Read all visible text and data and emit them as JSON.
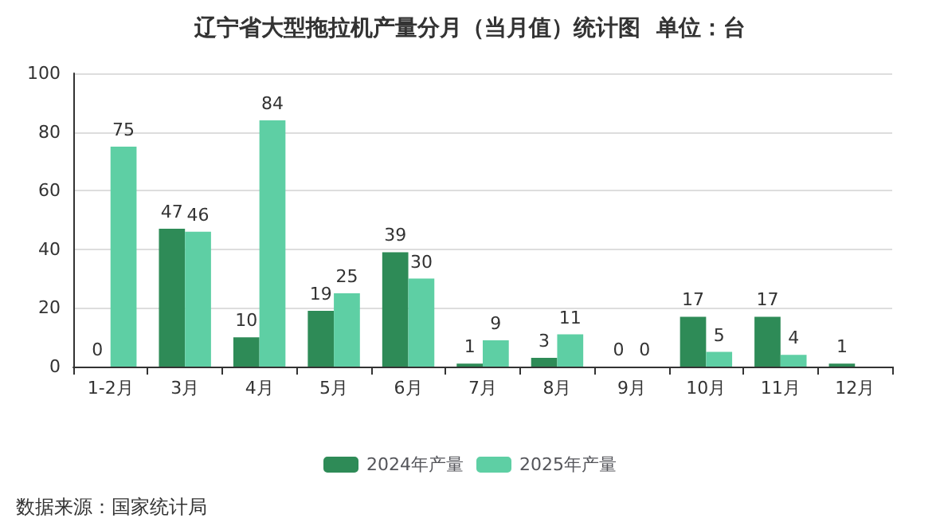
{
  "chart_data": {
    "type": "bar",
    "title": "辽宁省大型拖拉机产量分月（当月值）统计图  单位：台",
    "categories": [
      "1-2月",
      "3月",
      "4月",
      "5月",
      "6月",
      "7月",
      "8月",
      "9月",
      "10月",
      "11月",
      "12月"
    ],
    "series": [
      {
        "name": "2024年产量",
        "color": "#2e8b57",
        "values": [
          0,
          47,
          10,
          19,
          39,
          1,
          3,
          0,
          17,
          17,
          1
        ]
      },
      {
        "name": "2025年产量",
        "color": "#5ecfa4",
        "values": [
          75,
          46,
          84,
          25,
          30,
          9,
          11,
          0,
          5,
          4,
          null
        ]
      }
    ],
    "ylim": [
      0,
      100
    ],
    "yticks": [
      0,
      20,
      40,
      60,
      80,
      100
    ],
    "grid": "y",
    "legend": "bottom",
    "data_labels": true,
    "annotations": [
      "数据来源：国家统计局"
    ]
  }
}
